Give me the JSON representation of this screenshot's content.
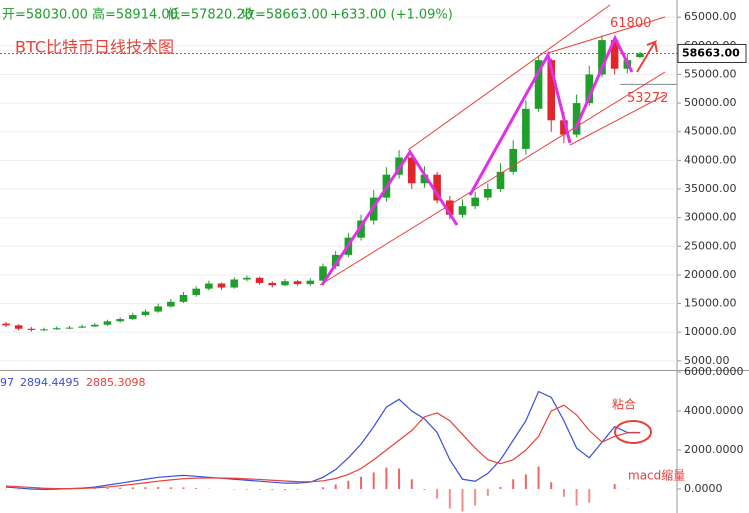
{
  "chart_data": [
    {
      "type": "candlestick",
      "title": "BTC比特币日线技术图",
      "header": [
        "开=58030.00",
        "高=58914.00",
        "低=57820.20",
        "收=58663.00",
        "+633.00 (+1.09%)"
      ],
      "open": [
        11500,
        11200,
        10600,
        10400,
        10500,
        10700,
        10800,
        11000,
        11300,
        11900,
        12300,
        13000,
        13600,
        14500,
        15300,
        16500,
        17600,
        18500,
        17800,
        19200,
        19500,
        18600,
        18200,
        18900,
        18400,
        19000,
        21500,
        23500,
        26500,
        29500,
        33500,
        37500,
        40500,
        36000,
        37500,
        33000,
        30500,
        32000,
        33500,
        35000,
        38000,
        42000,
        49000,
        57500,
        47000,
        44500,
        50000,
        55000,
        61000,
        56000,
        58030
      ],
      "high": [
        11800,
        11400,
        10900,
        10800,
        11000,
        11100,
        11300,
        11600,
        12200,
        12600,
        13400,
        14000,
        15000,
        15800,
        17000,
        18000,
        19000,
        18700,
        19600,
        19900,
        19700,
        18900,
        19300,
        19100,
        19400,
        22000,
        24200,
        27300,
        30500,
        34800,
        38800,
        41800,
        41000,
        39000,
        38000,
        33800,
        33200,
        34500,
        36000,
        39500,
        43500,
        50500,
        58300,
        57800,
        48500,
        51500,
        56500,
        61800,
        61300,
        58600,
        58914
      ],
      "low": [
        10900,
        10300,
        10100,
        10200,
        10400,
        10500,
        10700,
        10900,
        11100,
        11700,
        12100,
        12800,
        13400,
        14300,
        15100,
        16200,
        17300,
        17400,
        17600,
        18900,
        18300,
        17800,
        18000,
        18100,
        18100,
        18800,
        21000,
        23100,
        26000,
        28800,
        32800,
        36800,
        35000,
        35200,
        32500,
        29700,
        30000,
        31500,
        33000,
        34500,
        37500,
        41000,
        48500,
        45000,
        43000,
        44000,
        49500,
        54500,
        55000,
        55200,
        57820.2
      ],
      "close": [
        11200,
        10600,
        10400,
        10500,
        10700,
        10800,
        11000,
        11300,
        11900,
        12300,
        13000,
        13600,
        14500,
        15300,
        16500,
        17600,
        18500,
        17800,
        19200,
        19500,
        18600,
        18200,
        18900,
        18400,
        19000,
        21500,
        23500,
        26500,
        29500,
        33500,
        37500,
        40500,
        36000,
        37500,
        33000,
        30500,
        32000,
        33500,
        35000,
        38000,
        42000,
        49000,
        57500,
        47000,
        44500,
        50000,
        55000,
        61000,
        56000,
        57500,
        58663
      ],
      "up_color": "#1f9e2c",
      "down_color": "#e0262b",
      "ylim": [
        3400,
        68000
      ],
      "yticks": [
        {
          "value": 5000,
          "label": "5000.00"
        },
        {
          "value": 10000,
          "label": "10000.00"
        },
        {
          "value": 15000,
          "label": "15000.00"
        },
        {
          "value": 20000,
          "label": "20000.00"
        },
        {
          "value": 25000,
          "label": "25000.00"
        },
        {
          "value": 30000,
          "label": "30000.00"
        },
        {
          "value": 35000,
          "label": "35000.00"
        },
        {
          "value": 40000,
          "label": "40000.00"
        },
        {
          "value": 45000,
          "label": "45000.00"
        },
        {
          "value": 50000,
          "label": "50000.00"
        },
        {
          "value": 55000,
          "label": "55000.00"
        },
        {
          "value": 60000,
          "label": "60000.00"
        },
        {
          "value": 65000,
          "label": "65000.00"
        }
      ],
      "grid": true,
      "current_price": {
        "value": 58663,
        "label": "58663.00"
      },
      "annotations": [
        {
          "value": 61800,
          "label": "61800"
        },
        {
          "value": 53272,
          "label": "53272"
        }
      ]
    },
    {
      "type": "macd",
      "header": [
        "97",
        "2894.4495",
        "2885.3098"
      ],
      "series": [
        {
          "color": "#3b4fd6",
          "values": [
            100,
            50,
            0,
            -20,
            -10,
            20,
            50,
            100,
            200,
            300,
            400,
            500,
            600,
            650,
            700,
            650,
            600,
            550,
            500,
            450,
            400,
            350,
            300,
            300,
            350,
            600,
            1000,
            1600,
            2300,
            3200,
            4200,
            4600,
            4000,
            3600,
            2900,
            1500,
            500,
            400,
            800,
            1500,
            2500,
            3500,
            5000,
            4700,
            3500,
            2100,
            1600,
            2400,
            3200,
            2900,
            2894.4495
          ]
        },
        {
          "color": "#e8403a",
          "values": [
            150,
            120,
            80,
            40,
            20,
            20,
            30,
            60,
            100,
            170,
            240,
            320,
            400,
            470,
            530,
            560,
            570,
            560,
            550,
            520,
            490,
            450,
            410,
            380,
            370,
            420,
            540,
            750,
            1050,
            1500,
            2000,
            2500,
            3000,
            3700,
            3900,
            3500,
            2800,
            2100,
            1500,
            1300,
            1500,
            2000,
            2700,
            4000,
            4300,
            3800,
            3000,
            2400,
            2700,
            2880,
            2885.3098
          ]
        }
      ],
      "histogram": [
        -25,
        -35,
        -40,
        -30,
        -15,
        0,
        10,
        20,
        50,
        65,
        80,
        90,
        100,
        90,
        85,
        45,
        15,
        -5,
        -25,
        -35,
        -45,
        -50,
        -55,
        -40,
        -10,
        90,
        230,
        425,
        625,
        850,
        1100,
        1050,
        500,
        -50,
        -500,
        -1000,
        -1150,
        -850,
        -350,
        100,
        500,
        750,
        1150,
        350,
        -400,
        -850,
        -700,
        0,
        250,
        10,
        9.1397
      ],
      "ylim": [
        -1230,
        6000
      ],
      "yticks": [
        {
          "value": 0,
          "label": "0.0000"
        },
        {
          "value": 2000,
          "label": "2000.0000"
        },
        {
          "value": 4000,
          "label": "4000.0000"
        },
        {
          "value": 6000,
          "label": "6000.0000"
        }
      ],
      "annotations": [
        "粘合",
        "macd缩量"
      ]
    }
  ]
}
